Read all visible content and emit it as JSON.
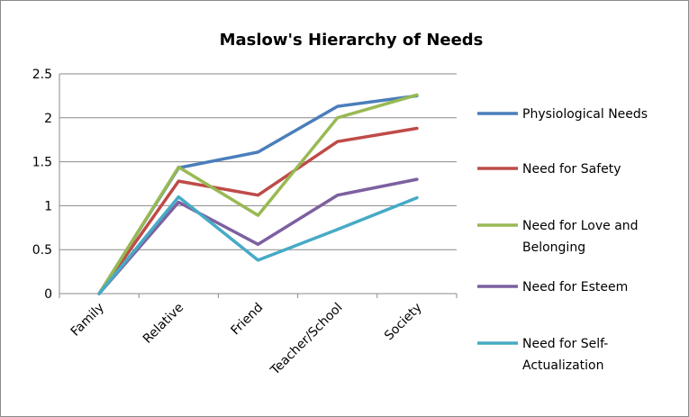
{
  "chart_data": {
    "type": "line",
    "title": "Maslow's Hierarchy of Needs",
    "xlabel": "",
    "ylabel": "",
    "categories": [
      "Family",
      "Relative",
      "Friend",
      "Teacher/School",
      "Society"
    ],
    "ylim": [
      0,
      2.5
    ],
    "yticks": [
      "0",
      "0.5",
      "1",
      "1.5",
      "2",
      "2.5"
    ],
    "ytick_values": [
      0,
      0.5,
      1,
      1.5,
      2,
      2.5
    ],
    "grid": true,
    "legend_position": "right",
    "series": [
      {
        "name": "Physiological Needs",
        "legend_lines": [
          "Physiological Needs"
        ],
        "color": "#4a7ebb",
        "values": [
          0,
          1.43,
          1.61,
          2.13,
          2.25
        ]
      },
      {
        "name": "Need for Safety",
        "legend_lines": [
          "Need for Safety"
        ],
        "color": "#be4b48",
        "values": [
          0,
          1.28,
          1.12,
          1.73,
          1.88
        ]
      },
      {
        "name": "Need for Love and Belonging",
        "legend_lines": [
          "Need for Love and",
          "Belonging"
        ],
        "color": "#98b954",
        "values": [
          0,
          1.44,
          0.89,
          2.0,
          2.26
        ]
      },
      {
        "name": "Need for Esteem",
        "legend_lines": [
          "Need for Esteem"
        ],
        "color": "#7d60a0",
        "values": [
          0,
          1.04,
          0.56,
          1.12,
          1.3
        ]
      },
      {
        "name": "Need for Self-Actualization",
        "legend_lines": [
          "Need for Self-",
          "Actualization"
        ],
        "color": "#46aac5",
        "values": [
          0,
          1.1,
          0.38,
          0.73,
          1.09
        ]
      }
    ]
  }
}
